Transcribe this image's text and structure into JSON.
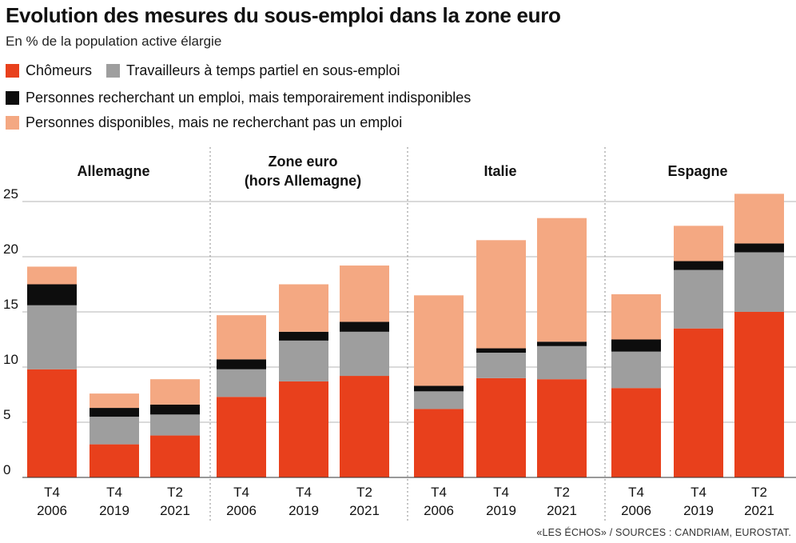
{
  "header": {
    "title": "Evolution des mesures du sous-emploi dans la zone euro",
    "subtitle": "En % de la population active élargie"
  },
  "source": "«LES ÉCHOS» / SOURCES : CANDRIAM, EUROSTAT.",
  "chart_data": {
    "type": "bar",
    "stacked": true,
    "title": "Evolution des mesures du sous-emploi dans la zone euro",
    "subtitle": "En % de la population active élargie",
    "ylim": [
      0,
      27
    ],
    "yticks": [
      "0",
      "5",
      "10",
      "15",
      "20",
      "25"
    ],
    "grid": true,
    "legend_position": "top-left",
    "series": [
      {
        "name": "Chômeurs",
        "color": "#e8401c"
      },
      {
        "name": "Travailleurs à temps partiel en sous-emploi",
        "color": "#9e9e9e"
      },
      {
        "name": "Personnes recherchant un emploi, mais temporairement indisponibles",
        "color": "#0d0d0d"
      },
      {
        "name": "Personnes disponibles, mais ne recherchant pas un emploi",
        "color": "#f4a882"
      }
    ],
    "panels": [
      {
        "title_lines": [
          "Allemagne"
        ],
        "categories": [
          {
            "line1": "T4",
            "line2": "2006",
            "values": [
              9.8,
              5.8,
              1.9,
              1.6
            ]
          },
          {
            "line1": "T4",
            "line2": "2019",
            "values": [
              3.0,
              2.5,
              0.8,
              1.3
            ]
          },
          {
            "line1": "T2",
            "line2": "2021",
            "values": [
              3.8,
              1.9,
              0.9,
              2.3
            ]
          }
        ]
      },
      {
        "title_lines": [
          "Zone euro",
          "(hors Allemagne)"
        ],
        "categories": [
          {
            "line1": "T4",
            "line2": "2006",
            "values": [
              7.3,
              2.5,
              0.9,
              4.0
            ]
          },
          {
            "line1": "T4",
            "line2": "2019",
            "values": [
              8.7,
              3.7,
              0.8,
              4.3
            ]
          },
          {
            "line1": "T2",
            "line2": "2021",
            "values": [
              9.2,
              4.0,
              0.9,
              5.1
            ]
          }
        ]
      },
      {
        "title_lines": [
          "Italie"
        ],
        "categories": [
          {
            "line1": "T4",
            "line2": "2006",
            "values": [
              6.2,
              1.6,
              0.5,
              8.2
            ]
          },
          {
            "line1": "T4",
            "line2": "2019",
            "values": [
              9.0,
              2.3,
              0.4,
              9.8
            ]
          },
          {
            "line1": "T2",
            "line2": "2021",
            "values": [
              8.9,
              3.0,
              0.4,
              11.2
            ]
          }
        ]
      },
      {
        "title_lines": [
          "Espagne"
        ],
        "categories": [
          {
            "line1": "T4",
            "line2": "2006",
            "values": [
              8.1,
              3.3,
              1.1,
              4.1
            ]
          },
          {
            "line1": "T4",
            "line2": "2019",
            "values": [
              13.5,
              5.3,
              0.8,
              3.2
            ]
          },
          {
            "line1": "T2",
            "line2": "2021",
            "values": [
              15.0,
              5.4,
              0.8,
              4.5
            ]
          }
        ]
      }
    ]
  }
}
